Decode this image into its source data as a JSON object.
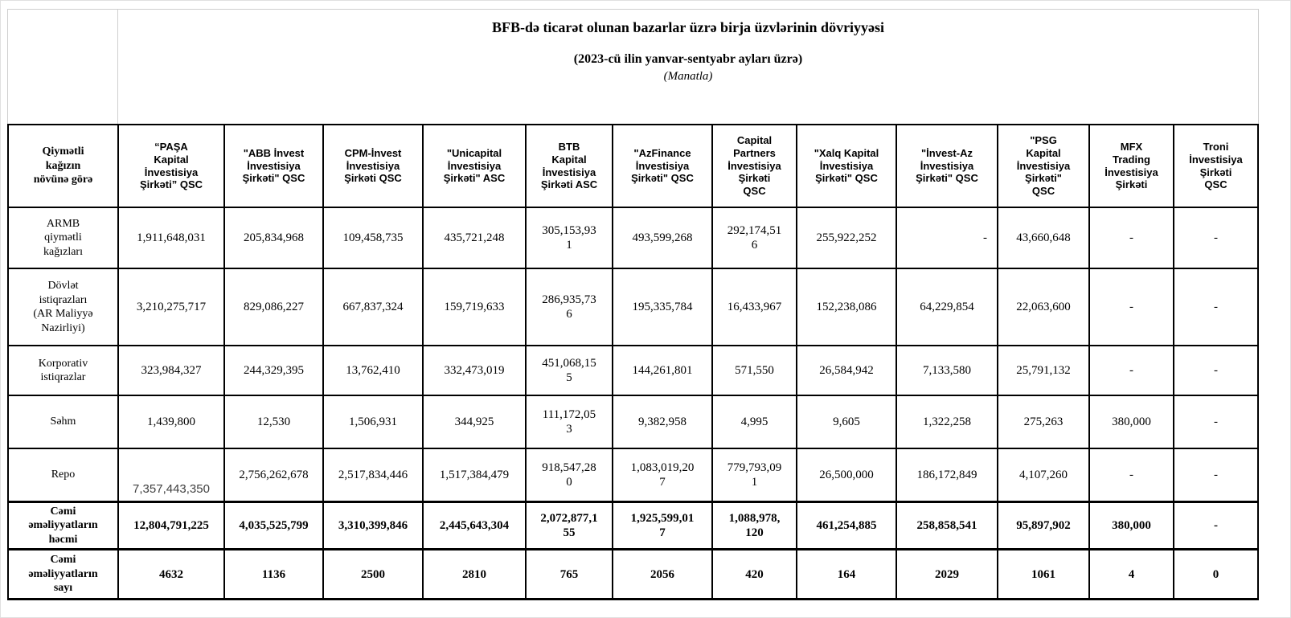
{
  "page": {
    "title_line1": "BFB-də ticarət olunan bazarlar üzrə birja üzvlərinin dövriyyəsi",
    "title_line2": "(2023-cü ilin yanvar-sentyabr ayları üzrə)",
    "title_line3": "(Manatla)"
  },
  "table": {
    "corner_header": "Qiymətli kağızın növünə görə",
    "column_headers": [
      "“PAŞA Kapital İnvestisiya Şirkəti” QSC",
      "\"ABB İnvest İnvestisiya Şirkəti\" QSC",
      "CPM-İnvest İnvestisiya Şirkəti QSC",
      "\"Unicapital İnvestisiya Şirkəti\" ASC",
      "BTB Kapital İnvestisiya Şirkəti ASC",
      "\"AzFinance İnvestisiya Şirkəti\" QSC",
      "Capital Partners İnvestisiya Şirkəti QSC",
      "\"Xalq Kapital İnvestisiya Şirkəti\" QSC",
      "\"İnvest-Az İnvestisiya Şirkəti\" QSC",
      "\"PSG Kapital İnvestisiya Şirkəti\" QSC",
      "MFX Trading İnvestisiya Şirkəti",
      "Troni İnvestisiya Şirkəti QSC"
    ],
    "rows": [
      {
        "label": "ARMB qiymətli kağızları",
        "bold": false,
        "values": [
          "1,911,648,031",
          "205,834,968",
          "109,458,735",
          "435,721,248",
          "305,153,931",
          "493,599,268",
          "292,174,516",
          "255,922,252",
          "-",
          "43,660,648",
          "-",
          "-"
        ]
      },
      {
        "label": "Dövlət istiqrazları (AR Maliyyə Nazirliyi)",
        "bold": false,
        "values": [
          "3,210,275,717",
          "829,086,227",
          "667,837,324",
          "159,719,633",
          "286,935,736",
          "195,335,784",
          "16,433,967",
          "152,238,086",
          "64,229,854",
          "22,063,600",
          "-",
          "-"
        ]
      },
      {
        "label": "Korporativ istiqrazlar",
        "bold": false,
        "values": [
          "323,984,327",
          "244,329,395",
          "13,762,410",
          "332,473,019",
          "451,068,155",
          "144,261,801",
          "571,550",
          "26,584,942",
          "7,133,580",
          "25,791,132",
          "-",
          "-"
        ]
      },
      {
        "label": "Səhm",
        "bold": false,
        "values": [
          "1,439,800",
          "12,530",
          "1,506,931",
          "344,925",
          "111,172,053",
          "9,382,958",
          "4,995",
          "9,605",
          "1,322,258",
          "275,263",
          "380,000",
          "-"
        ]
      },
      {
        "label": "Repo",
        "bold": false,
        "values": [
          "7,357,443,350",
          "2,756,262,678",
          "2,517,834,446",
          "1,517,384,479",
          "918,547,280",
          "1,083,019,207",
          "779,793,091",
          "26,500,000",
          "186,172,849",
          "4,107,260",
          "-",
          "-"
        ]
      },
      {
        "label": "Cəmi əməliyyatların həcmi",
        "bold": true,
        "values": [
          "12,804,791,225",
          "4,035,525,799",
          "3,310,399,846",
          "2,445,643,304",
          "2,072,877,155",
          "1,925,599,017",
          "1,088,978,120",
          "461,254,885",
          "258,858,541",
          "95,897,902",
          "380,000",
          "-"
        ]
      },
      {
        "label": "Cəmi əməliyyatların sayı",
        "bold": true,
        "values": [
          "4632",
          "1136",
          "2500",
          "2810",
          "765",
          "2056",
          "420",
          "164",
          "2029",
          "1061",
          "4",
          "0"
        ]
      }
    ]
  },
  "colors": {
    "table_border": "#000000",
    "grid_line": "#cfcfcf",
    "background": "#ffffff",
    "text": "#000000",
    "repo_pasha_value_color": "#404040"
  }
}
